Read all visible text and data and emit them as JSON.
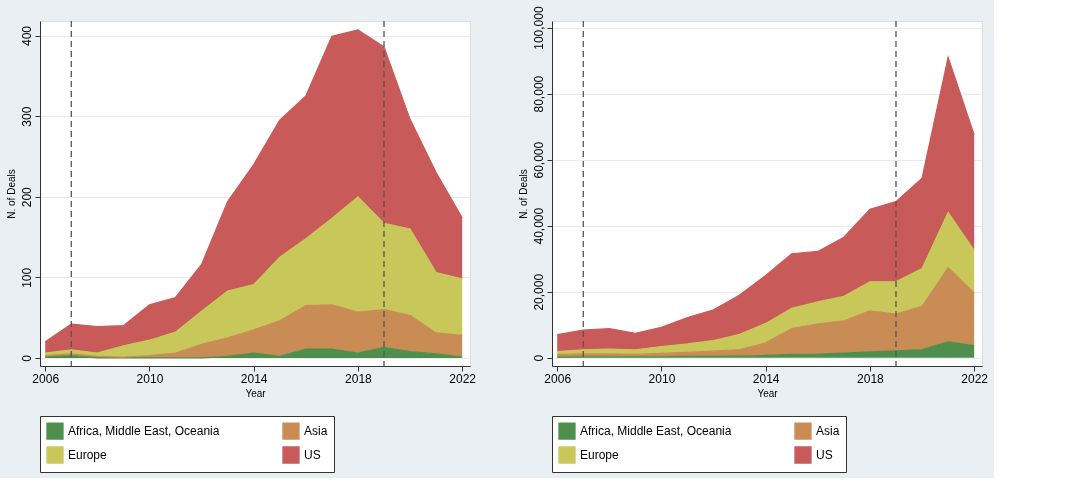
{
  "chart_data": [
    {
      "type": "area",
      "stacked": true,
      "xlabel": "Year",
      "ylabel": "N. of Deals",
      "x": [
        2006,
        2007,
        2008,
        2009,
        2010,
        2011,
        2012,
        2013,
        2014,
        2015,
        2016,
        2017,
        2018,
        2019,
        2020,
        2021,
        2022
      ],
      "series": [
        {
          "name": "Africa, Middle East, Oceania",
          "color": "#4e8f4e",
          "values": [
            1,
            3,
            0,
            0,
            0,
            0,
            0,
            2,
            6,
            2,
            11,
            11,
            6,
            13,
            8,
            5,
            1
          ]
        },
        {
          "name": "Asia",
          "color": "#c98c55",
          "values": [
            2,
            2,
            2,
            1,
            3,
            6,
            17,
            23,
            29,
            44,
            54,
            55,
            51,
            47,
            45,
            26,
            27
          ]
        },
        {
          "name": "Europe",
          "color": "#c8c85a",
          "values": [
            3,
            5,
            4,
            14,
            19,
            26,
            41,
            58,
            56,
            79,
            83,
            107,
            143,
            107,
            107,
            75,
            70
          ]
        },
        {
          "name": "US",
          "color": "#c85a5a",
          "values": [
            14,
            32,
            33,
            25,
            44,
            43,
            58,
            111,
            149,
            170,
            177,
            226,
            207,
            219,
            136,
            124,
            76
          ]
        }
      ],
      "xlim": [
        2005.8,
        2022.3
      ],
      "xticks": [
        2006,
        2010,
        2014,
        2018,
        2022
      ],
      "ylim": [
        -10,
        418
      ],
      "yticks": [
        0,
        100,
        200,
        300,
        400
      ],
      "ref_lines": [
        {
          "axis": "x",
          "value": 2007,
          "color": "#555555",
          "line_style": "dashed"
        },
        {
          "axis": "x",
          "value": 2019,
          "color": "#555555",
          "line_style": "dashed"
        }
      ],
      "grid": "y",
      "legend": "bottom"
    },
    {
      "type": "area",
      "stacked": true,
      "xlabel": "Year",
      "ylabel": "N. of Deals",
      "x": [
        2006,
        2007,
        2008,
        2009,
        2010,
        2011,
        2012,
        2013,
        2014,
        2015,
        2016,
        2017,
        2018,
        2019,
        2020,
        2021,
        2022
      ],
      "series": [
        {
          "name": "Africa, Middle East, Oceania",
          "color": "#4e8f4e",
          "values": [
            200,
            300,
            300,
            300,
            300,
            400,
            400,
            500,
            700,
            1000,
            1100,
            1400,
            1800,
            2100,
            2500,
            4800,
            3700
          ]
        },
        {
          "name": "Asia",
          "color": "#c98c55",
          "values": [
            800,
            900,
            900,
            700,
            1000,
            1200,
            1600,
            2000,
            3800,
            7800,
            9200,
            9800,
            12400,
            11100,
            13100,
            22500,
            15900
          ]
        },
        {
          "name": "Europe",
          "color": "#c8c85a",
          "values": [
            900,
            1200,
            1400,
            1400,
            2100,
            2600,
            3200,
            4600,
            5900,
            6200,
            6600,
            7400,
            8800,
            9800,
            11400,
            16700,
            12900
          ]
        },
        {
          "name": "US",
          "color": "#c85a5a",
          "values": [
            5100,
            6000,
            6200,
            5000,
            5800,
            8000,
            9300,
            11900,
            14500,
            16500,
            15300,
            17900,
            22000,
            24300,
            27400,
            47000,
            35000
          ]
        }
      ],
      "xlim": [
        2005.8,
        2022.3
      ],
      "xticks": [
        2006,
        2010,
        2014,
        2018,
        2022
      ],
      "ylim": [
        -2500,
        102000
      ],
      "yticks": [
        0,
        {
          "value": 20000,
          "label": "20,000"
        },
        {
          "value": 40000,
          "label": "40,000"
        },
        {
          "value": 60000,
          "label": "60,000"
        },
        {
          "value": 80000,
          "label": "80,000"
        },
        {
          "value": 100000,
          "label": "100,000"
        }
      ],
      "ref_lines": [
        {
          "axis": "x",
          "value": 2007,
          "color": "#555555",
          "line_style": "dashed"
        },
        {
          "axis": "x",
          "value": 2019,
          "color": "#555555",
          "line_style": "dashed"
        }
      ],
      "grid": "y",
      "legend": "bottom"
    }
  ]
}
